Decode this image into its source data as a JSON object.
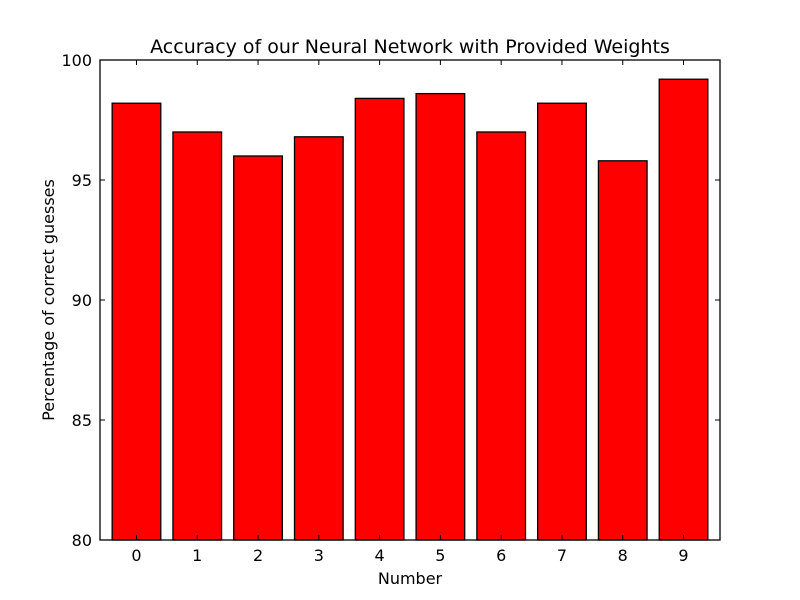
{
  "chart_data": {
    "type": "bar",
    "title": "Accuracy of our Neural Network with Provided Weights",
    "xlabel": "Number",
    "ylabel": "Percentage of correct guesses",
    "categories": [
      "0",
      "1",
      "2",
      "3",
      "4",
      "5",
      "6",
      "7",
      "8",
      "9"
    ],
    "values": [
      98.2,
      97.0,
      96.0,
      96.8,
      98.4,
      98.6,
      97.0,
      98.2,
      95.8,
      99.2
    ],
    "ylim": [
      80,
      100
    ],
    "yticks": [
      80,
      85,
      90,
      95,
      100
    ],
    "bar_color": "#ff0000",
    "edge_color": "#000000",
    "grid": false
  }
}
